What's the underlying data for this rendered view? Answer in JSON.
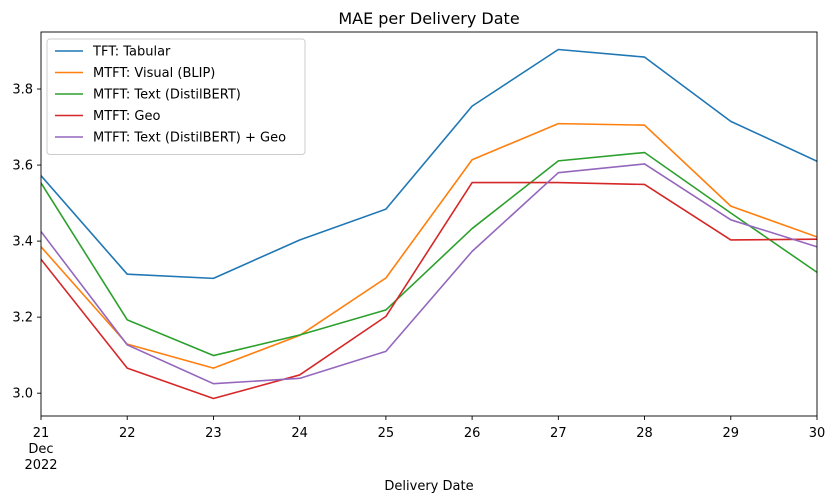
{
  "chart_data": {
    "type": "line",
    "title": "MAE per Delivery Date",
    "xlabel": "Delivery Date",
    "ylabel": "",
    "x": [
      21,
      22,
      23,
      24,
      25,
      26,
      27,
      28,
      29,
      30
    ],
    "x_tick_labels": [
      "21",
      "22",
      "23",
      "24",
      "25",
      "26",
      "27",
      "28",
      "29",
      "30"
    ],
    "x_first_tick_sublabels": [
      "Dec",
      "2022"
    ],
    "xlim": [
      21,
      30
    ],
    "ylim": [
      2.94,
      3.95
    ],
    "y_ticks": [
      3.0,
      3.2,
      3.4,
      3.6,
      3.8
    ],
    "y_tick_labels": [
      "3.0",
      "3.2",
      "3.4",
      "3.6",
      "3.8"
    ],
    "grid": false,
    "legend_position": "top-left",
    "series": [
      {
        "name": "TFT: Tabular",
        "color": "#1f77b4",
        "values": [
          3.572,
          3.313,
          3.302,
          3.403,
          3.484,
          3.755,
          3.904,
          3.884,
          3.715,
          3.61
        ]
      },
      {
        "name": "MTFT: Visual (BLIP)",
        "color": "#ff7f0e",
        "values": [
          3.385,
          3.129,
          3.066,
          3.152,
          3.303,
          3.614,
          3.709,
          3.705,
          3.492,
          3.411
        ]
      },
      {
        "name": "MTFT: Text (DistilBERT)",
        "color": "#2ca02c",
        "values": [
          3.553,
          3.193,
          3.099,
          3.153,
          3.219,
          3.433,
          3.611,
          3.633,
          3.474,
          3.318
        ]
      },
      {
        "name": "MTFT: Geo",
        "color": "#d62728",
        "values": [
          3.352,
          3.066,
          2.986,
          3.048,
          3.202,
          3.554,
          3.554,
          3.549,
          3.403,
          3.405
        ]
      },
      {
        "name": "MTFT: Text (DistilBERT) + Geo",
        "color": "#9467bd",
        "values": [
          3.425,
          3.127,
          3.025,
          3.039,
          3.11,
          3.373,
          3.58,
          3.603,
          3.456,
          3.385
        ]
      }
    ]
  }
}
